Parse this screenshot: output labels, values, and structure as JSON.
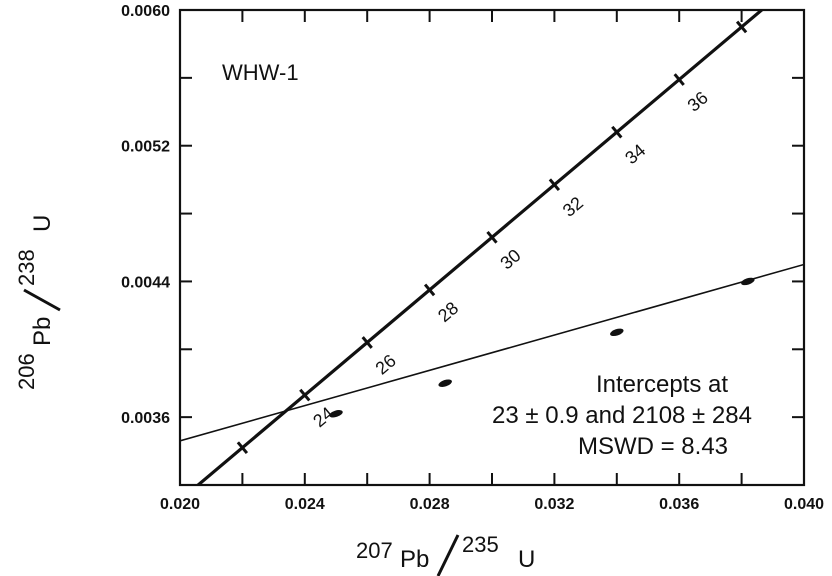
{
  "chart_data": {
    "type": "scatter",
    "title": "",
    "sample_label": "WHW-1",
    "xlabel": {
      "mass_top": "207",
      "element_top": "Pb",
      "mass_bottom": "235",
      "element_bottom": "U"
    },
    "ylabel": {
      "mass_top": "206",
      "element_top": "Pb",
      "mass_bottom": "238",
      "element_bottom": "U"
    },
    "xlim": [
      0.02,
      0.04
    ],
    "ylim": [
      0.0032,
      0.006
    ],
    "x_ticks": [
      "0.020",
      "0.024",
      "0.028",
      "0.032",
      "0.036",
      "0.040"
    ],
    "y_ticks": [
      "0.0036",
      "0.0044",
      "0.0052",
      "0.0060"
    ],
    "concordia": {
      "ages_ma": [
        22,
        24,
        26,
        28,
        30,
        32,
        34,
        36,
        38
      ],
      "labeled_ages": [
        "24",
        "26",
        "28",
        "30",
        "32",
        "34",
        "36"
      ],
      "points": [
        {
          "age": 22,
          "x": 0.022,
          "y": 0.00342
        },
        {
          "age": 24,
          "x": 0.024,
          "y": 0.00373
        },
        {
          "age": 26,
          "x": 0.026,
          "y": 0.00404
        },
        {
          "age": 28,
          "x": 0.028,
          "y": 0.00435
        },
        {
          "age": 30,
          "x": 0.03,
          "y": 0.00466
        },
        {
          "age": 32,
          "x": 0.032,
          "y": 0.00497
        },
        {
          "age": 34,
          "x": 0.034,
          "y": 0.00528
        },
        {
          "age": 36,
          "x": 0.036,
          "y": 0.00559
        },
        {
          "age": 38,
          "x": 0.038,
          "y": 0.0059
        }
      ]
    },
    "discordia": {
      "x": [
        0.02,
        0.04
      ],
      "y": [
        0.00346,
        0.0045
      ]
    },
    "data_points": [
      {
        "x": 0.025,
        "y": 0.00362
      },
      {
        "x": 0.0285,
        "y": 0.0038
      },
      {
        "x": 0.034,
        "y": 0.0041
      },
      {
        "x": 0.0382,
        "y": 0.0044
      }
    ],
    "annotation": {
      "line1": "Intercepts at",
      "line2": "23 ± 0.9 and 2108 ± 284",
      "line3": "MSWD = 8.43"
    }
  }
}
